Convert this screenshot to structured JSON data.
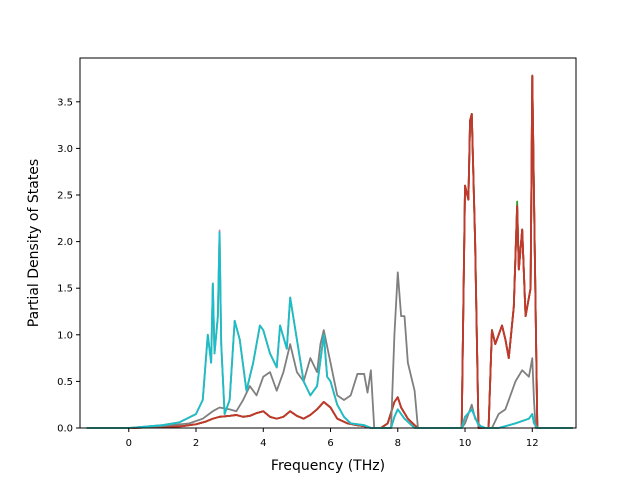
{
  "chart_data": {
    "type": "line",
    "title": "",
    "xlabel": "Frequency (THz)",
    "ylabel": "Partial Density of States",
    "xlim": [
      -1.45,
      13.3
    ],
    "ylim": [
      0.0,
      3.97
    ],
    "xticks": [
      0,
      2,
      4,
      6,
      8,
      10,
      12
    ],
    "xtick_labels": [
      "0",
      "2",
      "4",
      "6",
      "8",
      "10",
      "12"
    ],
    "yticks": [
      0.0,
      0.5,
      1.0,
      1.5,
      2.0,
      2.5,
      3.0,
      3.5
    ],
    "ytick_labels": [
      "0.0",
      "0.5",
      "1.0",
      "1.5",
      "2.0",
      "2.5",
      "3.0",
      "3.5"
    ],
    "grid": false,
    "legend": "none",
    "series": [
      {
        "color": "#2ca02c",
        "x": [
          -1.25,
          0.0,
          1.0,
          1.6,
          2.0,
          2.3,
          2.5,
          2.7,
          3.0,
          3.2,
          3.4,
          3.6,
          3.8,
          4.0,
          4.2,
          4.4,
          4.6,
          4.8,
          5.0,
          5.2,
          5.4,
          5.6,
          5.8,
          6.0,
          6.2,
          6.5,
          6.8,
          7.0,
          7.2,
          7.3,
          7.5,
          7.7,
          7.9,
          8.0,
          8.1,
          8.3,
          8.5,
          8.6,
          9.9,
          10.0,
          10.1,
          10.15,
          10.2,
          10.3,
          10.4,
          10.7,
          10.8,
          10.9,
          11.1,
          11.2,
          11.3,
          11.45,
          11.55,
          11.6,
          11.7,
          11.8,
          11.95,
          12.0,
          12.05,
          12.15,
          13.2
        ],
        "y": [
          0.0,
          0.0,
          0.01,
          0.02,
          0.04,
          0.07,
          0.1,
          0.12,
          0.13,
          0.14,
          0.12,
          0.13,
          0.16,
          0.18,
          0.12,
          0.1,
          0.12,
          0.18,
          0.13,
          0.1,
          0.14,
          0.2,
          0.28,
          0.22,
          0.1,
          0.05,
          0.03,
          0.02,
          0.0,
          0.0,
          0.0,
          0.05,
          0.28,
          0.33,
          0.22,
          0.1,
          0.03,
          0.0,
          0.0,
          2.6,
          2.45,
          3.3,
          3.37,
          2.0,
          0.0,
          0.0,
          1.05,
          0.9,
          1.1,
          0.95,
          0.75,
          1.3,
          2.43,
          1.7,
          2.13,
          1.2,
          1.5,
          3.78,
          2.5,
          0.0,
          0.0
        ]
      },
      {
        "color": "#d62728",
        "x": [
          -1.25,
          0.0,
          1.0,
          1.6,
          2.0,
          2.3,
          2.5,
          2.7,
          3.0,
          3.2,
          3.4,
          3.6,
          3.8,
          4.0,
          4.2,
          4.4,
          4.6,
          4.8,
          5.0,
          5.2,
          5.4,
          5.6,
          5.8,
          6.0,
          6.2,
          6.5,
          6.8,
          7.0,
          7.2,
          7.3,
          7.5,
          7.7,
          7.9,
          8.0,
          8.1,
          8.3,
          8.5,
          8.6,
          9.9,
          10.0,
          10.1,
          10.15,
          10.2,
          10.3,
          10.4,
          10.7,
          10.8,
          10.9,
          11.1,
          11.2,
          11.3,
          11.45,
          11.55,
          11.6,
          11.7,
          11.8,
          11.95,
          12.0,
          12.05,
          12.15,
          13.2
        ],
        "y": [
          0.0,
          0.0,
          0.01,
          0.02,
          0.04,
          0.07,
          0.1,
          0.12,
          0.13,
          0.14,
          0.12,
          0.13,
          0.16,
          0.18,
          0.12,
          0.1,
          0.12,
          0.18,
          0.13,
          0.1,
          0.14,
          0.2,
          0.28,
          0.22,
          0.1,
          0.05,
          0.03,
          0.02,
          0.0,
          0.0,
          0.0,
          0.05,
          0.28,
          0.33,
          0.22,
          0.1,
          0.03,
          0.0,
          0.0,
          2.6,
          2.45,
          3.3,
          3.37,
          2.0,
          0.0,
          0.0,
          1.05,
          0.9,
          1.1,
          0.95,
          0.75,
          1.3,
          2.38,
          1.7,
          2.13,
          1.2,
          1.5,
          3.78,
          2.5,
          0.0,
          0.0
        ]
      },
      {
        "color": "#8c564b",
        "x": [
          -1.25,
          0.0,
          1.0,
          1.6,
          2.0,
          2.3,
          2.5,
          2.7,
          3.0,
          3.2,
          3.4,
          3.6,
          3.8,
          4.0,
          4.2,
          4.4,
          4.6,
          4.8,
          5.0,
          5.2,
          5.4,
          5.6,
          5.8,
          6.0,
          6.2,
          6.5,
          6.8,
          7.0,
          7.2,
          7.3,
          7.5,
          7.7,
          7.9,
          8.0,
          8.1,
          8.3,
          8.5,
          8.6,
          9.9,
          10.0,
          10.1,
          10.15,
          10.2,
          10.3,
          10.4,
          10.7,
          10.8,
          10.9,
          11.1,
          11.2,
          11.3,
          11.45,
          11.55,
          11.6,
          11.7,
          11.8,
          11.95,
          12.0,
          12.05,
          12.15,
          13.2
        ],
        "y": [
          0.0,
          0.0,
          0.01,
          0.02,
          0.04,
          0.07,
          0.1,
          0.12,
          0.13,
          0.14,
          0.12,
          0.13,
          0.16,
          0.18,
          0.12,
          0.1,
          0.12,
          0.18,
          0.13,
          0.1,
          0.14,
          0.2,
          0.28,
          0.22,
          0.1,
          0.05,
          0.03,
          0.02,
          0.0,
          0.0,
          0.0,
          0.05,
          0.28,
          0.33,
          0.22,
          0.1,
          0.03,
          0.0,
          0.0,
          2.6,
          2.45,
          3.3,
          3.37,
          2.0,
          0.0,
          0.0,
          1.05,
          0.9,
          1.1,
          0.95,
          0.75,
          1.3,
          2.38,
          1.7,
          2.13,
          1.2,
          1.5,
          3.78,
          2.5,
          0.0,
          0.0
        ]
      },
      {
        "color": "#c0392b",
        "x": [
          -1.25,
          0.0,
          1.0,
          1.6,
          2.0,
          2.3,
          2.5,
          2.7,
          3.0,
          3.2,
          3.4,
          3.6,
          3.8,
          4.0,
          4.2,
          4.4,
          4.6,
          4.8,
          5.0,
          5.2,
          5.4,
          5.6,
          5.8,
          6.0,
          6.2,
          6.5,
          6.8,
          7.0,
          7.2,
          7.3,
          7.5,
          7.7,
          7.9,
          8.0,
          8.1,
          8.3,
          8.5,
          8.6,
          9.9,
          10.0,
          10.1,
          10.15,
          10.2,
          10.3,
          10.4,
          10.7,
          10.8,
          10.9,
          11.1,
          11.2,
          11.3,
          11.45,
          11.55,
          11.6,
          11.7,
          11.8,
          11.95,
          12.0,
          12.05,
          12.15,
          13.2
        ],
        "y": [
          0.0,
          0.0,
          0.01,
          0.02,
          0.04,
          0.07,
          0.1,
          0.12,
          0.13,
          0.14,
          0.12,
          0.13,
          0.16,
          0.18,
          0.12,
          0.1,
          0.12,
          0.18,
          0.13,
          0.1,
          0.14,
          0.2,
          0.28,
          0.22,
          0.1,
          0.05,
          0.03,
          0.02,
          0.0,
          0.0,
          0.0,
          0.05,
          0.28,
          0.33,
          0.22,
          0.1,
          0.03,
          0.0,
          0.0,
          2.6,
          2.45,
          3.3,
          3.37,
          2.0,
          0.0,
          0.0,
          1.05,
          0.9,
          1.1,
          0.95,
          0.75,
          1.3,
          2.38,
          1.7,
          2.13,
          1.2,
          1.5,
          3.78,
          2.5,
          0.0,
          0.0
        ]
      },
      {
        "color": "#e377c2",
        "x": [
          -1.25,
          0.0,
          1.0,
          1.5,
          2.0,
          2.2,
          2.35,
          2.45,
          2.5,
          2.55,
          2.65,
          2.7,
          2.75,
          2.85,
          3.0,
          3.15,
          3.3,
          3.5,
          3.7,
          3.9,
          4.0,
          4.2,
          4.4,
          4.5,
          4.7,
          4.8,
          5.0,
          5.2,
          5.4,
          5.6,
          5.8,
          5.9,
          6.0,
          6.2,
          6.4,
          6.6,
          7.0,
          7.2,
          7.8,
          7.9,
          8.0,
          8.2,
          8.5,
          9.9,
          10.0,
          10.2,
          10.4,
          10.6,
          11.0,
          11.5,
          11.9,
          12.0,
          12.05,
          12.15,
          13.2
        ],
        "y": [
          0.0,
          0.0,
          0.03,
          0.06,
          0.15,
          0.3,
          1.0,
          0.7,
          1.55,
          0.8,
          1.2,
          2.12,
          0.9,
          0.15,
          0.3,
          1.15,
          0.95,
          0.4,
          0.7,
          1.1,
          1.05,
          0.8,
          0.65,
          1.1,
          0.85,
          1.4,
          0.95,
          0.5,
          0.35,
          0.45,
          1.0,
          0.55,
          0.5,
          0.25,
          0.12,
          0.05,
          0.03,
          0.0,
          0.0,
          0.12,
          0.2,
          0.1,
          0.0,
          0.0,
          0.12,
          0.2,
          0.03,
          0.0,
          0.0,
          0.05,
          0.1,
          0.15,
          0.05,
          0.0,
          0.0
        ]
      },
      {
        "color": "#7f7f7f",
        "x": [
          -1.25,
          0.0,
          1.0,
          1.8,
          2.2,
          2.5,
          2.7,
          3.0,
          3.2,
          3.4,
          3.6,
          3.8,
          4.0,
          4.2,
          4.4,
          4.6,
          4.8,
          5.0,
          5.2,
          5.4,
          5.6,
          5.7,
          5.8,
          6.0,
          6.2,
          6.4,
          6.6,
          6.8,
          7.0,
          7.1,
          7.2,
          7.3,
          7.8,
          7.9,
          8.0,
          8.1,
          8.2,
          8.3,
          8.5,
          8.6,
          9.9,
          10.0,
          10.1,
          10.2,
          10.3,
          10.5,
          10.8,
          11.0,
          11.2,
          11.3,
          11.5,
          11.7,
          11.9,
          12.0,
          12.05,
          12.1,
          13.2
        ],
        "y": [
          0.0,
          0.0,
          0.02,
          0.05,
          0.1,
          0.18,
          0.22,
          0.2,
          0.18,
          0.3,
          0.45,
          0.35,
          0.55,
          0.6,
          0.4,
          0.6,
          0.9,
          0.6,
          0.5,
          0.75,
          0.6,
          0.9,
          1.05,
          0.7,
          0.35,
          0.3,
          0.35,
          0.58,
          0.58,
          0.38,
          0.62,
          0.0,
          0.0,
          1.0,
          1.67,
          1.2,
          1.2,
          0.7,
          0.4,
          0.0,
          0.0,
          0.05,
          0.15,
          0.25,
          0.1,
          0.0,
          0.0,
          0.15,
          0.2,
          0.3,
          0.5,
          0.62,
          0.55,
          0.75,
          0.3,
          0.0,
          0.0
        ]
      },
      {
        "color": "#bcbd22",
        "x": [
          -1.25,
          0.0,
          1.0,
          1.5,
          2.0,
          2.2,
          2.35,
          2.45,
          2.5,
          2.55,
          2.65,
          2.7,
          2.75,
          2.85,
          3.0,
          3.15,
          3.3,
          3.5,
          3.7,
          3.9,
          4.0,
          4.2,
          4.4,
          4.5,
          4.7,
          4.8,
          5.0,
          5.2,
          5.4,
          5.6,
          5.8,
          5.9,
          6.0,
          6.2,
          6.4,
          6.6,
          7.0,
          7.2,
          7.8,
          7.9,
          8.0,
          8.2,
          8.5,
          9.9,
          10.0,
          10.2,
          10.4,
          10.6,
          11.0,
          11.5,
          11.9,
          12.0,
          12.05,
          12.15,
          13.2
        ],
        "y": [
          0.0,
          0.0,
          0.03,
          0.06,
          0.15,
          0.3,
          1.0,
          0.7,
          1.55,
          0.8,
          1.2,
          2.1,
          0.9,
          0.15,
          0.3,
          1.15,
          0.95,
          0.4,
          0.7,
          1.1,
          1.05,
          0.8,
          0.65,
          1.1,
          0.85,
          1.4,
          0.95,
          0.5,
          0.35,
          0.45,
          1.0,
          0.55,
          0.5,
          0.25,
          0.12,
          0.05,
          0.03,
          0.0,
          0.0,
          0.12,
          0.2,
          0.1,
          0.0,
          0.0,
          0.12,
          0.2,
          0.03,
          0.0,
          0.0,
          0.05,
          0.1,
          0.15,
          0.05,
          0.0,
          0.0
        ]
      },
      {
        "color": "#17becf",
        "x": [
          -1.25,
          0.0,
          1.0,
          1.5,
          2.0,
          2.2,
          2.35,
          2.45,
          2.5,
          2.55,
          2.65,
          2.7,
          2.75,
          2.85,
          3.0,
          3.15,
          3.3,
          3.5,
          3.7,
          3.9,
          4.0,
          4.2,
          4.4,
          4.5,
          4.7,
          4.8,
          5.0,
          5.2,
          5.4,
          5.6,
          5.8,
          5.9,
          6.0,
          6.2,
          6.4,
          6.6,
          7.0,
          7.2,
          7.8,
          7.9,
          8.0,
          8.2,
          8.5,
          9.9,
          10.0,
          10.2,
          10.4,
          10.6,
          11.0,
          11.5,
          11.9,
          12.0,
          12.05,
          12.15,
          13.2
        ],
        "y": [
          0.0,
          0.0,
          0.03,
          0.06,
          0.15,
          0.3,
          1.0,
          0.7,
          1.55,
          0.8,
          1.2,
          2.1,
          0.9,
          0.15,
          0.3,
          1.15,
          0.95,
          0.4,
          0.7,
          1.1,
          1.05,
          0.8,
          0.65,
          1.1,
          0.85,
          1.4,
          0.95,
          0.5,
          0.35,
          0.45,
          1.0,
          0.55,
          0.5,
          0.25,
          0.12,
          0.05,
          0.03,
          0.0,
          0.0,
          0.12,
          0.2,
          0.1,
          0.0,
          0.0,
          0.12,
          0.2,
          0.03,
          0.0,
          0.0,
          0.05,
          0.1,
          0.15,
          0.05,
          0.0,
          0.0
        ]
      }
    ]
  }
}
